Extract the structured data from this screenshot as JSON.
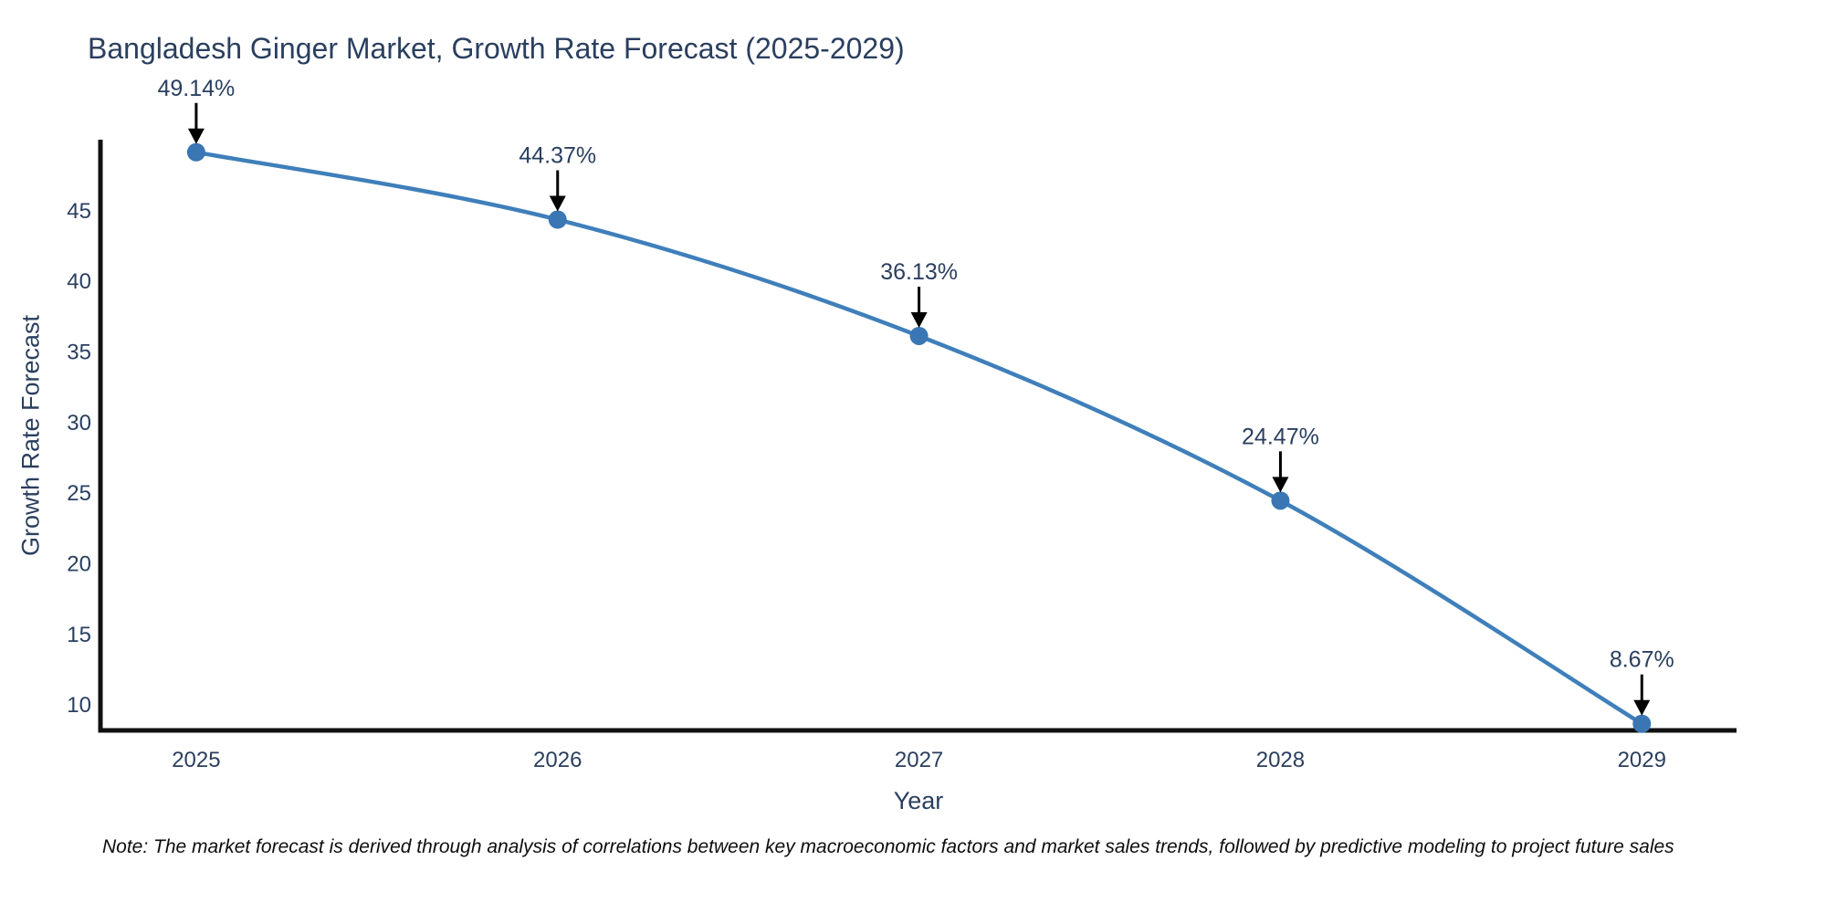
{
  "page": {
    "background": "#ffffff"
  },
  "note": "Note: The market forecast is derived through analysis of correlations between key macroeconomic factors and market sales trends, followed by predictive modeling to project future sales",
  "chart_data": {
    "type": "line",
    "title": "Bangladesh Ginger Market, Growth Rate Forecast (2025-2029)",
    "xlabel": "Year",
    "ylabel": "Growth Rate Forecast",
    "x": [
      2025,
      2026,
      2027,
      2028,
      2029
    ],
    "xticks": [
      "2025",
      "2026",
      "2027",
      "2028",
      "2029"
    ],
    "series": [
      {
        "name": "Growth Rate Forecast",
        "values": [
          49.14,
          44.37,
          36.13,
          24.47,
          8.67
        ]
      }
    ],
    "point_labels": [
      "49.14%",
      "44.37%",
      "36.13%",
      "24.47%",
      "8.67%"
    ],
    "yticks": [
      10,
      15,
      20,
      25,
      30,
      35,
      40,
      45
    ],
    "ylim": [
      8.2,
      49.9
    ],
    "xlim": [
      2024.735,
      2029.262
    ],
    "grid": false,
    "legend": false,
    "line_shape": "spline",
    "colors": {
      "line": "#3f7fba",
      "marker": "#3a76b4",
      "text": "#2a3f5f",
      "axis": "#111111",
      "arrow": "#000000",
      "background": "#ffffff"
    }
  }
}
